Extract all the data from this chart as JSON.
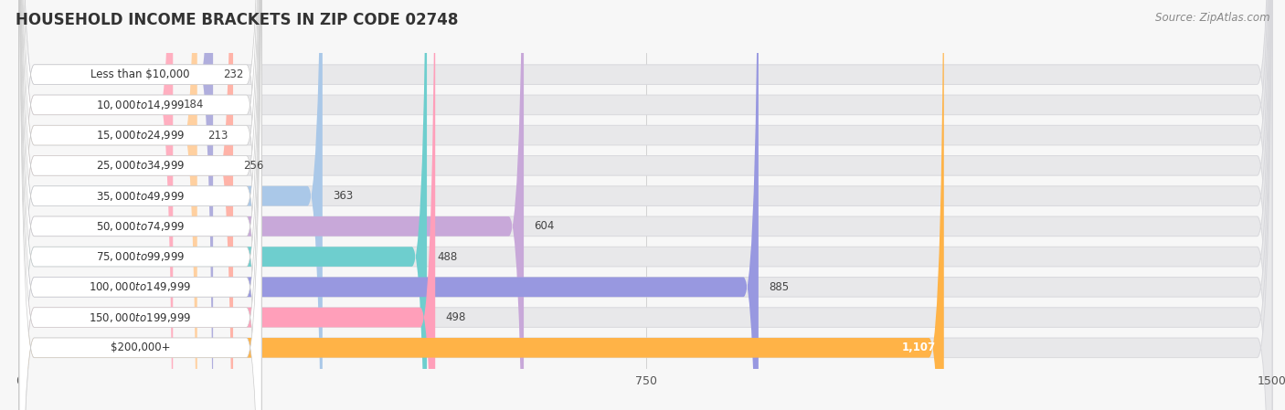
{
  "title": "HOUSEHOLD INCOME BRACKETS IN ZIP CODE 02748",
  "source": "Source: ZipAtlas.com",
  "categories": [
    "Less than $10,000",
    "$10,000 to $14,999",
    "$15,000 to $24,999",
    "$25,000 to $34,999",
    "$35,000 to $49,999",
    "$50,000 to $74,999",
    "$75,000 to $99,999",
    "$100,000 to $149,999",
    "$150,000 to $199,999",
    "$200,000+"
  ],
  "values": [
    232,
    184,
    213,
    256,
    363,
    604,
    488,
    885,
    498,
    1107
  ],
  "bar_colors": [
    "#b0aedd",
    "#ffafc0",
    "#ffd0a0",
    "#ffb3a8",
    "#aac8e8",
    "#c8a8d9",
    "#6ecece",
    "#9898e0",
    "#ff9fba",
    "#ffb347"
  ],
  "value_label_color": "#444444",
  "xlim": [
    0,
    1500
  ],
  "xticks": [
    0,
    750,
    1500
  ],
  "background_color": "#f7f7f7",
  "bar_bg_color": "#e8e8ea",
  "bar_bg_border": "#d8d8dc",
  "white_label_bg": "#ffffff",
  "title_fontsize": 12,
  "source_fontsize": 8.5,
  "label_fontsize": 8.5,
  "value_fontsize": 8.5,
  "tick_fontsize": 9,
  "bar_height": 0.65
}
